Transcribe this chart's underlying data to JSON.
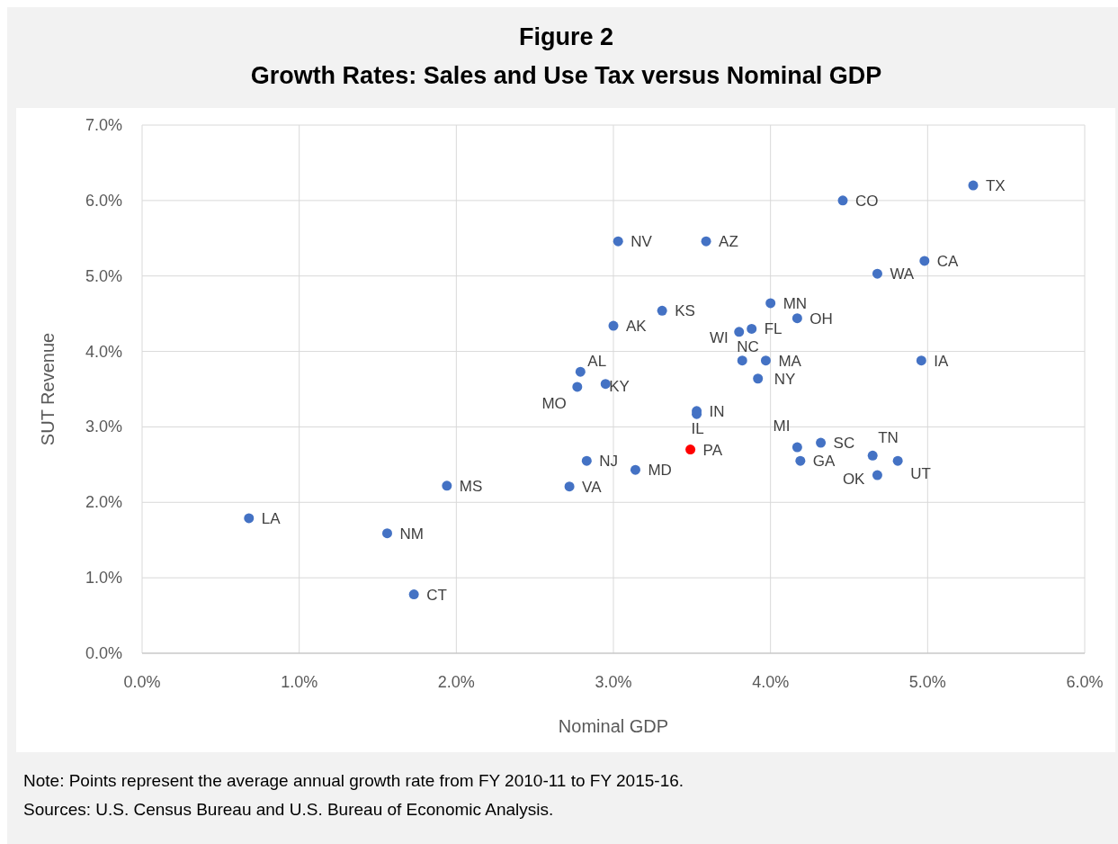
{
  "chart_data": {
    "type": "scatter",
    "title": "Figure 2",
    "subtitle": "Growth Rates: Sales and Use Tax versus Nominal GDP",
    "xlabel": "Nominal GDP",
    "ylabel": "SUT Revenue",
    "x": [
      0.68,
      1.56,
      1.73,
      1.94,
      2.72,
      2.83,
      3.14,
      3.49,
      2.77,
      2.79,
      2.95,
      3.0,
      3.03,
      3.59,
      3.31,
      3.53,
      3.53,
      3.8,
      3.88,
      3.82,
      3.97,
      3.92,
      4.0,
      4.17,
      4.17,
      4.32,
      4.19,
      4.65,
      4.68,
      4.81,
      4.46,
      5.29,
      4.98,
      4.68,
      4.96
    ],
    "values": [
      1.79,
      1.59,
      0.78,
      2.22,
      2.21,
      2.55,
      2.43,
      2.7,
      3.53,
      3.73,
      3.57,
      4.34,
      5.46,
      5.46,
      4.54,
      3.21,
      3.17,
      4.26,
      4.3,
      3.88,
      3.88,
      3.64,
      4.64,
      4.44,
      2.73,
      2.79,
      2.55,
      2.62,
      2.36,
      2.55,
      6.0,
      6.2,
      5.2,
      5.03,
      3.88
    ],
    "colors": [
      "#4472c4",
      "#4472c4",
      "#4472c4",
      "#4472c4",
      "#4472c4",
      "#4472c4",
      "#4472c4",
      "#ff0000",
      "#4472c4",
      "#4472c4",
      "#4472c4",
      "#4472c4",
      "#4472c4",
      "#4472c4",
      "#4472c4",
      "#4472c4",
      "#4472c4",
      "#4472c4",
      "#4472c4",
      "#4472c4",
      "#4472c4",
      "#4472c4",
      "#4472c4",
      "#4472c4",
      "#4472c4",
      "#4472c4",
      "#4472c4",
      "#4472c4",
      "#4472c4",
      "#4472c4",
      "#4472c4",
      "#4472c4",
      "#4472c4",
      "#4472c4",
      "#4472c4"
    ],
    "value_labels": [
      "LA",
      "NM",
      "CT",
      "MS",
      "VA",
      "NJ",
      "MD",
      "PA",
      "MO",
      "AL",
      "KY",
      "AK",
      "NV",
      "AZ",
      "KS",
      "IN",
      "IL",
      "WI",
      "FL",
      "NC",
      "MA",
      "NY",
      "MN",
      "OH",
      "MI",
      "SC",
      "GA",
      "TN",
      "OK",
      "UT",
      "CO",
      "TX",
      "CA",
      "WA",
      "IA"
    ],
    "xlim": [
      0,
      6
    ],
    "ylim": [
      0,
      7
    ],
    "xticks": [
      {
        "value": 0,
        "label": "0.0%"
      },
      {
        "value": 1,
        "label": "1.0%"
      },
      {
        "value": 2,
        "label": "2.0%"
      },
      {
        "value": 3,
        "label": "3.0%"
      },
      {
        "value": 4,
        "label": "4.0%"
      },
      {
        "value": 5,
        "label": "5.0%"
      },
      {
        "value": 6,
        "label": "6.0%"
      }
    ],
    "yticks": [
      {
        "value": 0,
        "label": "0.0%"
      },
      {
        "value": 1,
        "label": "1.0%"
      },
      {
        "value": 2,
        "label": "2.0%"
      },
      {
        "value": 3,
        "label": "3.0%"
      },
      {
        "value": 4,
        "label": "4.0%"
      },
      {
        "value": 5,
        "label": "5.0%"
      },
      {
        "value": 6,
        "label": "6.0%"
      },
      {
        "value": 7,
        "label": "7.0%"
      }
    ],
    "grid": true,
    "marker": "circle",
    "annotations": [
      "Note: Points represent the average annual growth rate from FY 2010-11 to FY 2015-16.",
      "Sources: U.S. Census Bureau and U.S. Bureau of Economic Analysis."
    ]
  }
}
